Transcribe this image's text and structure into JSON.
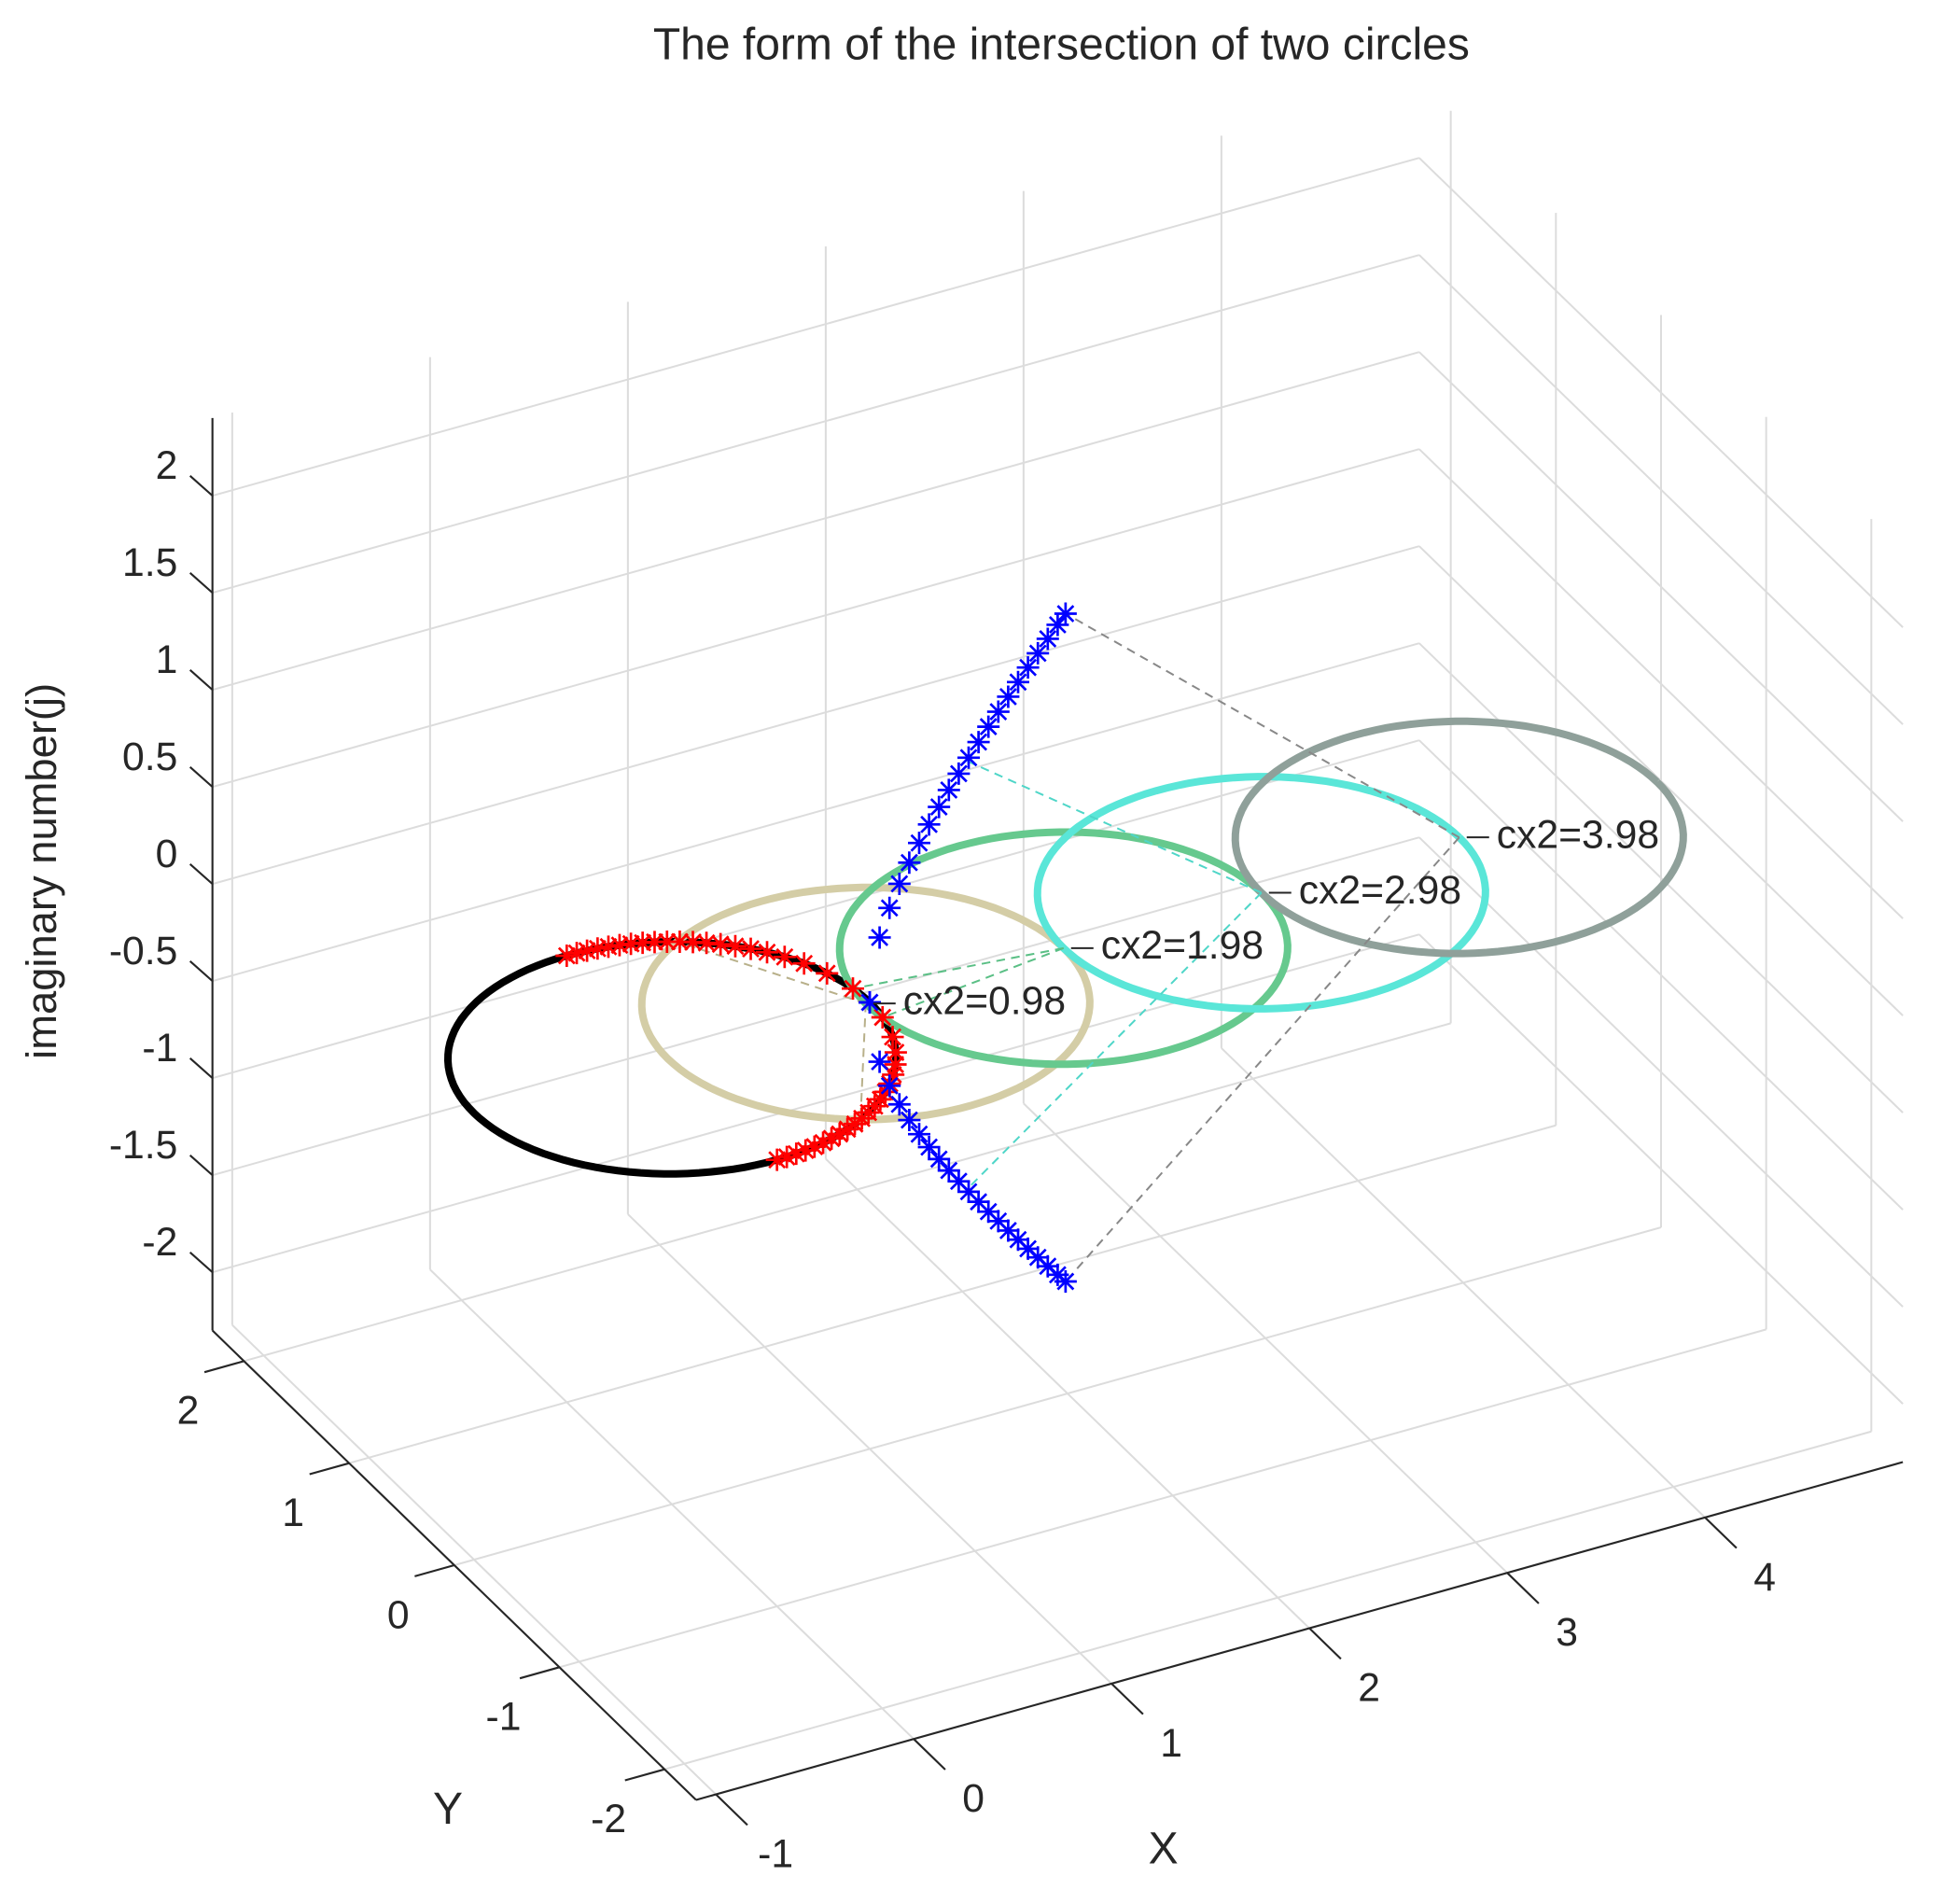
{
  "chart_data": {
    "type": "scatter3d",
    "title": "The form of the intersection of two circles",
    "x_label": "X",
    "y_label": "Y",
    "z_label": "imaginary number(j)",
    "xlim": [
      -1.1,
      5
    ],
    "ylim": [
      -2.3,
      2.3
    ],
    "zlim": [
      -2.3,
      2.4
    ],
    "xticks": [
      -1,
      0,
      1,
      2,
      3,
      4
    ],
    "yticks": [
      -2,
      -1,
      0,
      1,
      2
    ],
    "zticks": [
      -2,
      -1.5,
      -1,
      -0.5,
      0,
      0.5,
      1,
      1.5,
      2
    ],
    "grid": true,
    "circles": {
      "centers": [
        0,
        0.98,
        1.98,
        2.98,
        3.98
      ],
      "radius": 1,
      "colors": [
        "#000000",
        "#d4cda6",
        "#66c98e",
        "#5ae6d8",
        "#8fa09a"
      ]
    },
    "annotations": [
      "cx2=0.98",
      "cx2=1.98",
      "cx2=2.98",
      "cx2=3.98"
    ],
    "annotation_colors": [
      "#b8b08a",
      "#5abf85",
      "#4fd6c8",
      "#888888"
    ],
    "series": [
      {
        "color": "#ff0000",
        "x": [
          0,
          0.05,
          0.1,
          0.15,
          0.2,
          0.25,
          0.3,
          0.35,
          0.4,
          0.45,
          0.5,
          0.55,
          0.6,
          0.65,
          0.7,
          0.75,
          0.8,
          0.85,
          0.9,
          0.95,
          0.99
        ],
        "y": [
          1,
          0.999,
          0.995,
          0.989,
          0.98,
          0.968,
          0.954,
          0.937,
          0.917,
          0.893,
          0.866,
          0.835,
          0.8,
          0.76,
          0.714,
          0.661,
          0.6,
          0.527,
          0.436,
          0.312,
          0.141
        ],
        "z": [
          0,
          0,
          0,
          0,
          0,
          0,
          0,
          0,
          0,
          0,
          0,
          0,
          0,
          0,
          0,
          0,
          0,
          0,
          0,
          0,
          0
        ]
      },
      {
        "color": "#ff0000",
        "x": [
          0,
          0.05,
          0.1,
          0.15,
          0.2,
          0.25,
          0.3,
          0.35,
          0.4,
          0.45,
          0.5,
          0.55,
          0.6,
          0.65,
          0.7,
          0.75,
          0.8,
          0.85,
          0.9,
          0.95,
          0.99
        ],
        "y": [
          -1,
          -0.999,
          -0.995,
          -0.989,
          -0.98,
          -0.968,
          -0.954,
          -0.937,
          -0.917,
          -0.893,
          -0.866,
          -0.835,
          -0.8,
          -0.76,
          -0.714,
          -0.661,
          -0.6,
          -0.527,
          -0.436,
          -0.312,
          -0.141
        ],
        "z": [
          0,
          0,
          0,
          0,
          0,
          0,
          0,
          0,
          0,
          0,
          0,
          0,
          0,
          0,
          0,
          0,
          0,
          0,
          0,
          0,
          0
        ]
      },
      {
        "color": "#0000ff",
        "x": [
          1,
          1.05,
          1.1,
          1.15,
          1.2,
          1.25,
          1.3,
          1.35,
          1.4,
          1.45,
          1.5,
          1.55,
          1.6,
          1.65,
          1.7,
          1.75,
          1.8,
          1.85,
          1.9,
          1.95,
          1.99
        ],
        "y": [
          0,
          0,
          0,
          0,
          0,
          0,
          0,
          0,
          0,
          0,
          0,
          0,
          0,
          0,
          0,
          0,
          0,
          0,
          0,
          0,
          0
        ],
        "z": [
          0,
          0.32,
          0.458,
          0.568,
          0.663,
          0.75,
          0.831,
          0.907,
          0.98,
          1.05,
          1.118,
          1.184,
          1.249,
          1.312,
          1.375,
          1.436,
          1.497,
          1.556,
          1.616,
          1.674,
          1.72
        ]
      },
      {
        "color": "#0000ff",
        "x": [
          1,
          1.05,
          1.1,
          1.15,
          1.2,
          1.25,
          1.3,
          1.35,
          1.4,
          1.45,
          1.5,
          1.55,
          1.6,
          1.65,
          1.7,
          1.75,
          1.8,
          1.85,
          1.9,
          1.95,
          1.99
        ],
        "y": [
          0,
          0,
          0,
          0,
          0,
          0,
          0,
          0,
          0,
          0,
          0,
          0,
          0,
          0,
          0,
          0,
          0,
          0,
          0,
          0,
          0
        ],
        "z": [
          0,
          -0.32,
          -0.458,
          -0.568,
          -0.663,
          -0.75,
          -0.831,
          -0.907,
          -0.98,
          -1.05,
          -1.118,
          -1.184,
          -1.249,
          -1.312,
          -1.375,
          -1.436,
          -1.497,
          -1.556,
          -1.616,
          -1.674,
          -1.72
        ]
      }
    ]
  }
}
